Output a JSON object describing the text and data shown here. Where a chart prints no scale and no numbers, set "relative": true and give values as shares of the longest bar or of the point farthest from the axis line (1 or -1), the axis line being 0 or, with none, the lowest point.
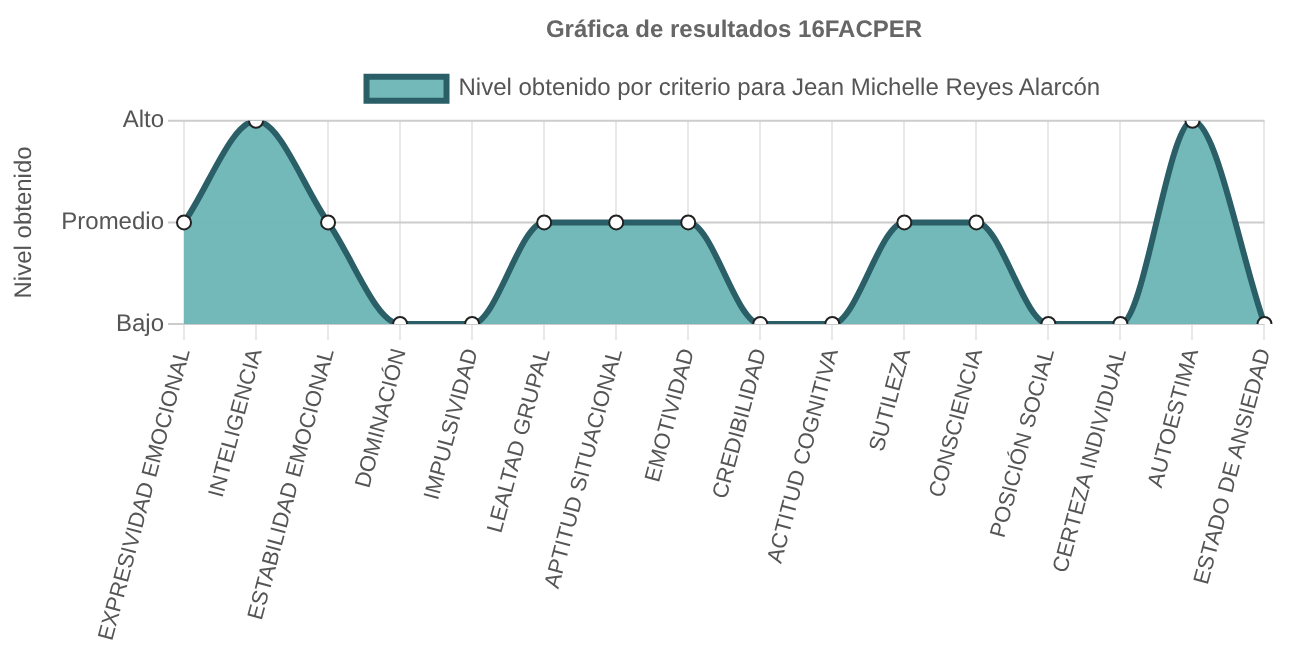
{
  "chart_data": {
    "type": "area",
    "title": "Gráfica de resultados 16FACPER",
    "ylabel": "Nivel obtenido",
    "categories": [
      "EXPRESIVIDAD EMOCIONAL",
      "INTELIGENCIA",
      "ESTABILIDAD EMOCIONAL",
      "DOMINACIÓN",
      "IMPULSIVIDAD",
      "LEALTAD GRUPAL",
      "APTITUD SITUACIONAL",
      "EMOTIVIDAD",
      "CREDIBILIDAD",
      "ACTITUD COGNITIVA",
      "SUTILEZA",
      "CONSCIENCIA",
      "POSICIÓN SOCIAL",
      "CERTEZA INDIVIDUAL",
      "AUTOESTIMA",
      "ESTADO DE ANSIEDAD"
    ],
    "series": [
      {
        "name": "Nivel obtenido por criterio para Jean Michelle Reyes Alarcón",
        "color": "#2b5f68",
        "values": [
          0.5,
          1,
          0.5,
          0,
          0,
          0.5,
          0.5,
          0.5,
          0,
          0,
          0.5,
          0.5,
          0,
          0,
          1,
          0
        ]
      }
    ],
    "relative": true,
    "ref_lines": [
      {
        "axis": "y",
        "value": 0,
        "label": "Bajo",
        "color": "#cccccc"
      },
      {
        "axis": "y",
        "value": 0.5,
        "label": "Promedio",
        "color": "#cccccc"
      },
      {
        "axis": "y",
        "value": 1,
        "label": "Alto",
        "color": "#cccccc"
      }
    ],
    "grid": "x",
    "legend": "top",
    "marker": "circle"
  }
}
